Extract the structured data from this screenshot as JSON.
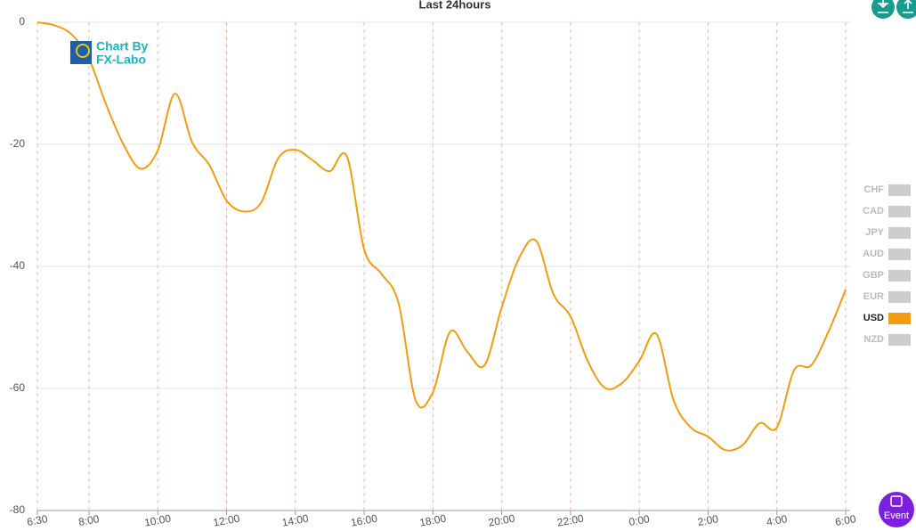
{
  "chart_data": {
    "type": "line",
    "title": "Last 24hours",
    "categories": [
      "6:30",
      null,
      null,
      "8:00",
      null,
      null,
      null,
      "10:00",
      null,
      null,
      null,
      "12:00",
      null,
      null,
      null,
      "14:00",
      null,
      null,
      null,
      "16:00",
      null,
      null,
      null,
      "18:00",
      null,
      null,
      null,
      "20:00",
      null,
      null,
      null,
      "22:00",
      null,
      null,
      null,
      "0:00",
      null,
      null,
      null,
      "2:00",
      null,
      null,
      null,
      "4:00",
      null,
      null,
      null,
      "6:00"
    ],
    "series": [
      {
        "name": "USD",
        "color": "#f39c12",
        "values": [
          0,
          -0.5,
          -2,
          -6,
          -13.5,
          -20,
          -24,
          -21,
          -11.7,
          -19.7,
          -23.4,
          -29.2,
          -31,
          -29.6,
          -22.3,
          -20.9,
          -22.6,
          -24.4,
          -22,
          -37.2,
          -41.2,
          -46,
          -62,
          -60.6,
          -50.7,
          -54,
          -56.2,
          -46.7,
          -38.7,
          -35.8,
          -44.5,
          -48.2,
          -55.5,
          -59.9,
          -59.1,
          -55.5,
          -51.1,
          -62,
          -66.4,
          -67.9,
          -70.1,
          -69.3,
          -65.7,
          -66.4,
          -57,
          -56.2,
          -50.7,
          -43.8
        ]
      }
    ],
    "ylim": [
      -80,
      0
    ],
    "yticks": [
      0,
      -20,
      -40,
      -60,
      -80
    ],
    "grid": true,
    "legend": {
      "items": [
        "CHF",
        "CAD",
        "JPY",
        "AUD",
        "GBP",
        "EUR",
        "USD",
        "NZD"
      ],
      "inactive_color": "#cccccc"
    }
  },
  "logo": [
    "Chart By",
    "FX-Labo"
  ],
  "event_button": "Event"
}
